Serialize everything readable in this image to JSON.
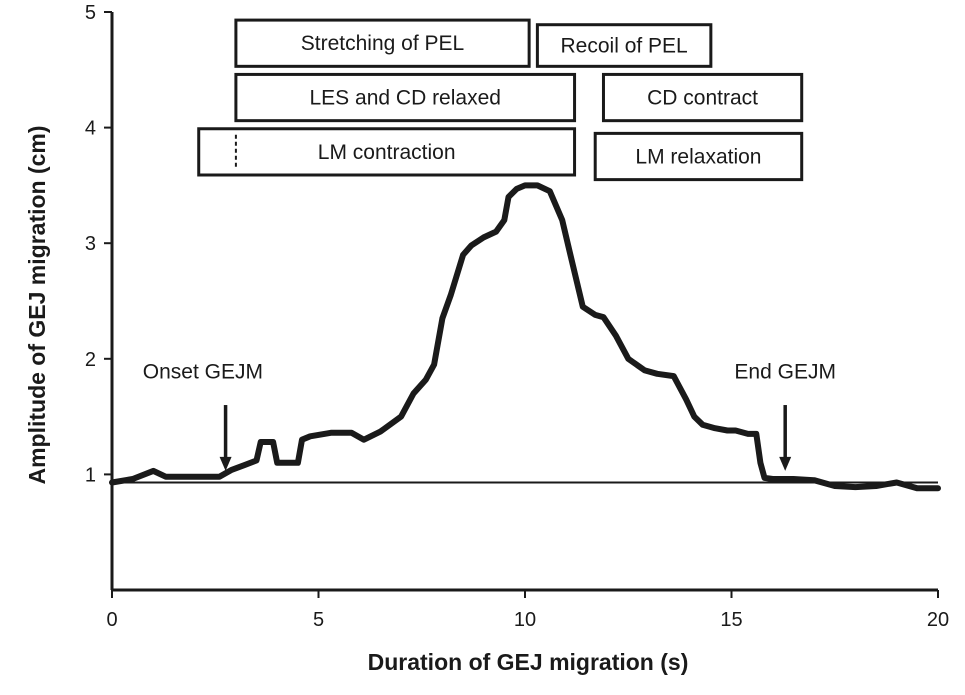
{
  "chart_data": {
    "type": "line",
    "title": "",
    "xlabel": "Duration of  GEJ migration (s)",
    "ylabel": "Amplitude of GEJ migration (cm)",
    "xlim": [
      0,
      20
    ],
    "ylim": [
      0,
      5
    ],
    "xticks": [
      "0",
      "5",
      "10",
      "15",
      "20"
    ],
    "yticks": [
      "1",
      "2",
      "3",
      "4",
      "5"
    ],
    "grid": false,
    "baseline": 0.93,
    "series": [
      {
        "x": [
          0,
          0.5,
          1.0,
          1.3,
          2.0,
          2.6,
          2.9,
          3.2,
          3.5,
          3.6,
          3.9,
          4.0,
          4.1,
          4.5,
          4.6,
          4.8,
          5.3,
          5.8,
          6.1,
          6.5,
          7.0,
          7.3,
          7.6,
          7.8,
          8.0,
          8.2,
          8.5,
          8.7,
          9.0,
          9.3,
          9.5,
          9.6,
          9.8,
          10.0,
          10.3,
          10.6,
          10.9,
          11.1,
          11.4,
          11.7,
          11.9,
          12.2,
          12.5,
          12.7,
          12.9,
          13.2,
          13.6,
          13.9,
          14.1,
          14.3,
          14.6,
          14.9,
          15.1,
          15.4,
          15.6,
          15.7,
          15.8,
          16.0,
          16.5,
          17.0,
          17.5,
          18.0,
          18.5,
          19.0,
          19.5,
          20.0
        ],
        "y": [
          0.93,
          0.96,
          1.03,
          0.98,
          0.98,
          0.98,
          1.04,
          1.08,
          1.12,
          1.28,
          1.28,
          1.1,
          1.1,
          1.1,
          1.3,
          1.33,
          1.36,
          1.36,
          1.3,
          1.37,
          1.5,
          1.7,
          1.82,
          1.95,
          2.35,
          2.55,
          2.9,
          2.98,
          3.05,
          3.1,
          3.2,
          3.4,
          3.47,
          3.5,
          3.5,
          3.45,
          3.2,
          2.9,
          2.45,
          2.38,
          2.36,
          2.2,
          2.0,
          1.95,
          1.9,
          1.87,
          1.85,
          1.65,
          1.5,
          1.43,
          1.4,
          1.38,
          1.38,
          1.35,
          1.35,
          1.1,
          0.97,
          0.96,
          0.96,
          0.95,
          0.9,
          0.89,
          0.9,
          0.93,
          0.88,
          0.88
        ]
      }
    ],
    "annotations": [
      {
        "text": "Onset GEJM",
        "arrow_x": 2.75,
        "arrow_top_y": 1.6,
        "arrow_tip_y": 1.03,
        "text_x": 2.2,
        "text_y": 1.83
      },
      {
        "text": "End GEJM",
        "arrow_x": 16.3,
        "arrow_top_y": 1.6,
        "arrow_tip_y": 1.03,
        "text_x": 16.3,
        "text_y": 1.83
      }
    ],
    "phase_boxes": [
      {
        "text": "Stretching of PEL",
        "x0": 3.0,
        "x1": 10.1,
        "y0": 4.53,
        "y1": 4.93
      },
      {
        "text": "Recoil of PEL",
        "x0": 10.3,
        "x1": 14.5,
        "y0": 4.53,
        "y1": 4.89
      },
      {
        "text": "LES and CD relaxed",
        "x0": 3.0,
        "x1": 11.2,
        "y0": 4.06,
        "y1": 4.46
      },
      {
        "text": "CD contract",
        "x0": 11.9,
        "x1": 16.7,
        "y0": 4.06,
        "y1": 4.46
      },
      {
        "text": "LM contraction",
        "x0": 2.1,
        "x1": 11.2,
        "y0": 3.59,
        "y1": 3.99,
        "dashed_x": 3.0
      },
      {
        "text": "LM relaxation",
        "x0": 11.7,
        "x1": 16.7,
        "y0": 3.55,
        "y1": 3.95
      }
    ]
  }
}
